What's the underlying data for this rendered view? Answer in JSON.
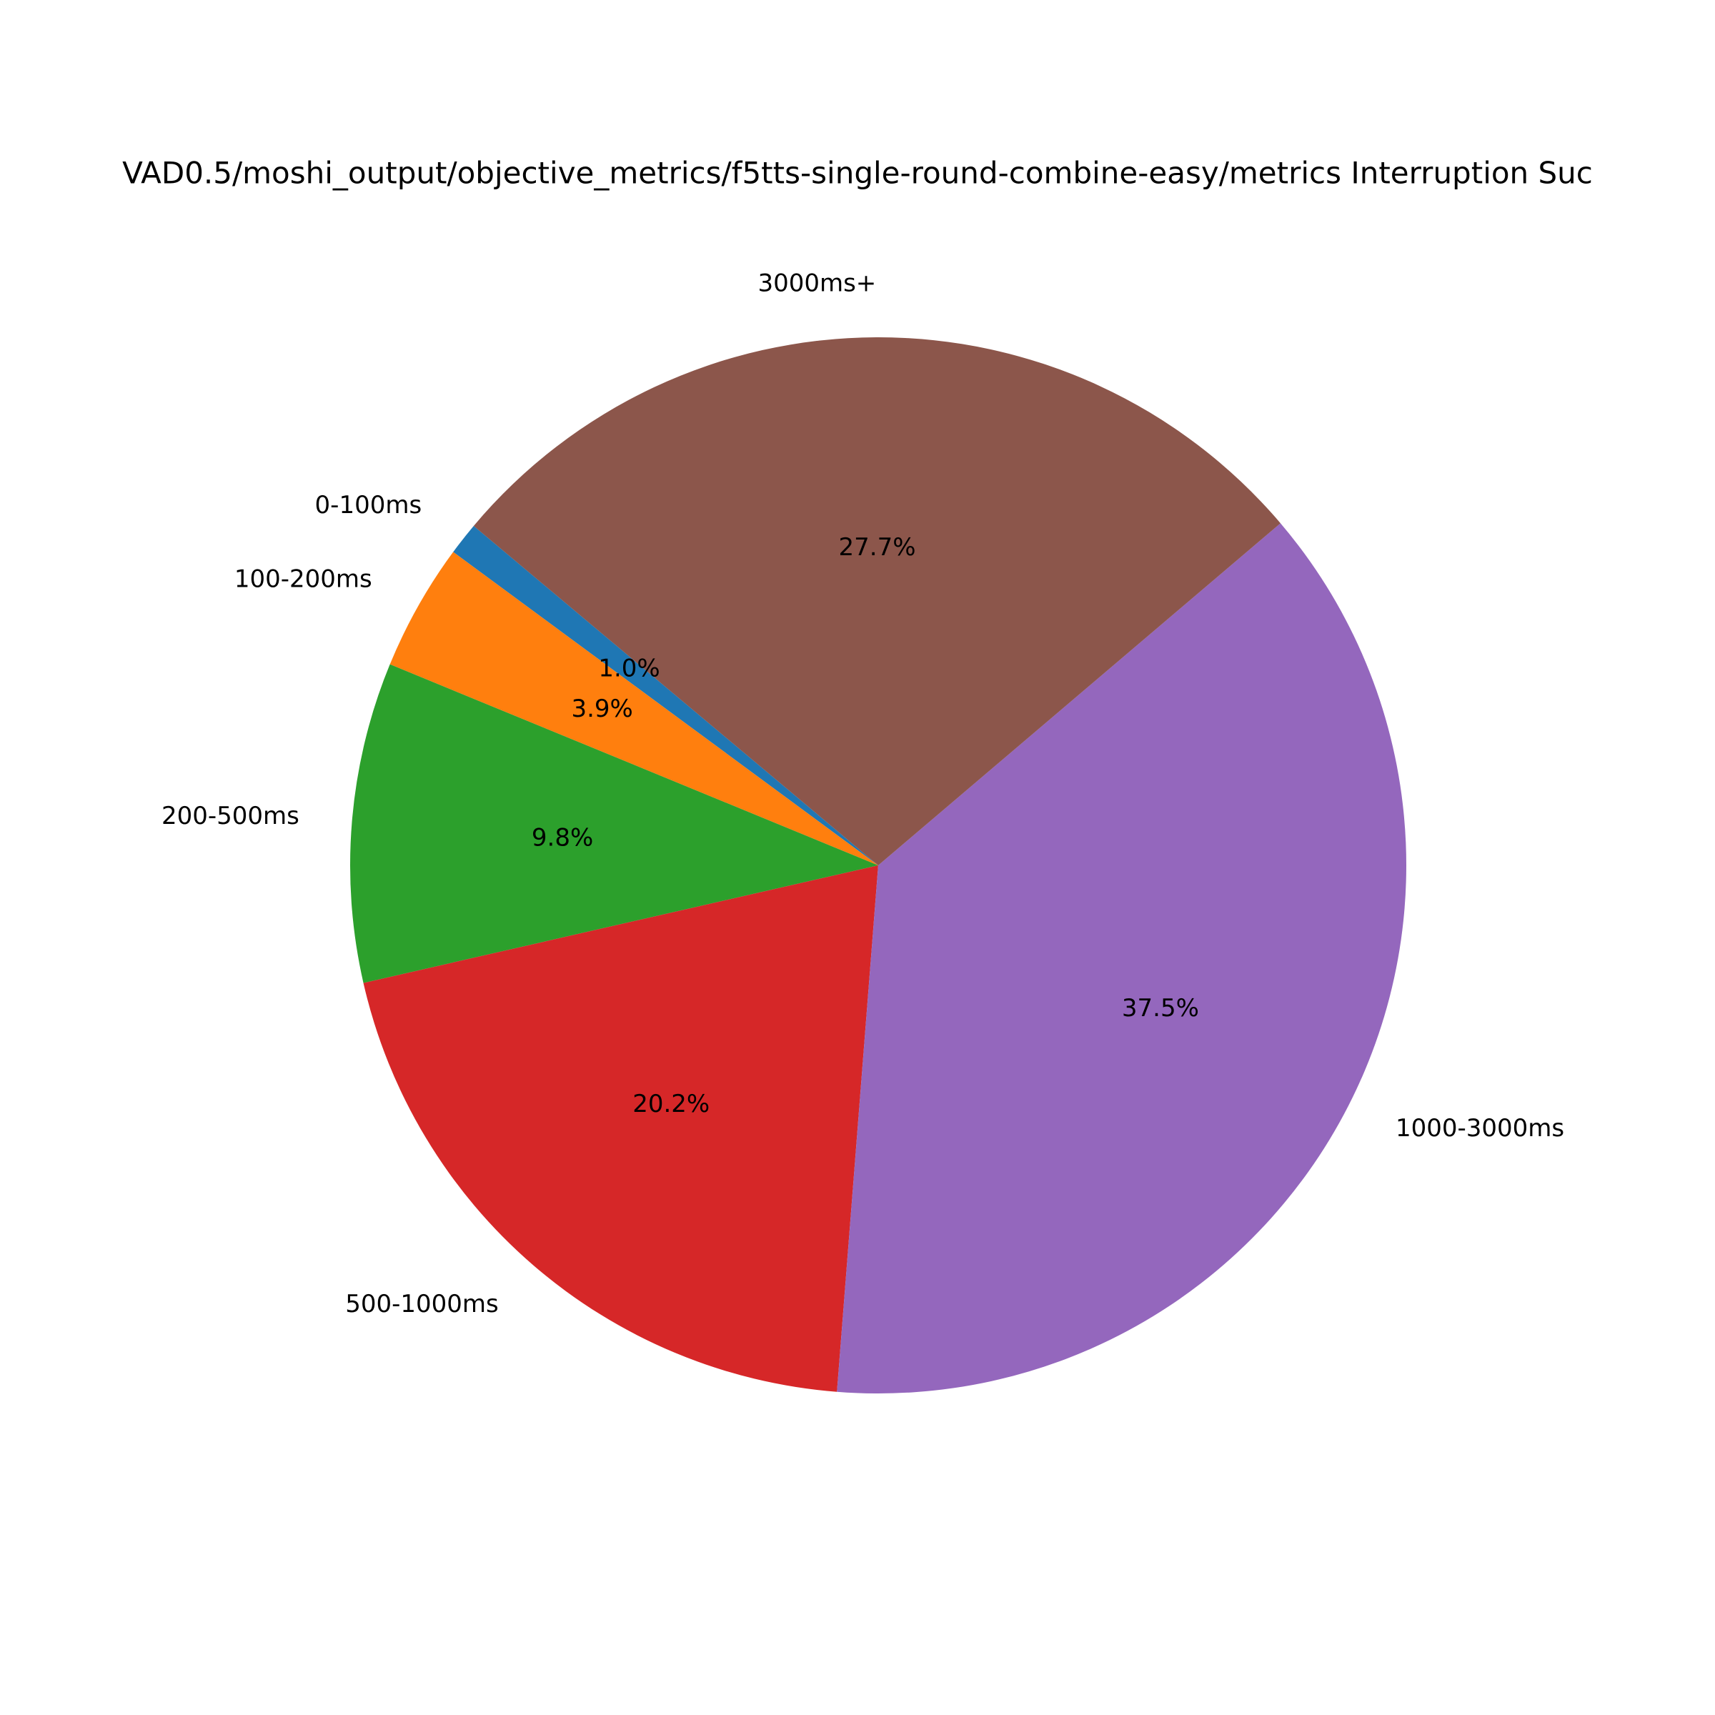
{
  "chart_data": {
    "type": "pie",
    "title": "VAD0.5/moshi_output/objective_metrics/f5tts-single-round-combine-easy/metrics Interruption Suc",
    "categories": [
      "0-100ms",
      "100-200ms",
      "200-500ms",
      "500-1000ms",
      "1000-3000ms",
      "3000ms+"
    ],
    "values": [
      1.0,
      3.9,
      9.8,
      20.2,
      37.5,
      27.7
    ],
    "value_labels": [
      "1.0%",
      "3.9%",
      "9.8%",
      "20.2%",
      "37.5%",
      "27.7%"
    ],
    "colors": [
      "#1f77b4",
      "#ff7f0e",
      "#2ca02c",
      "#d62728",
      "#9467bd",
      "#8c564b"
    ],
    "startangle": 140
  }
}
